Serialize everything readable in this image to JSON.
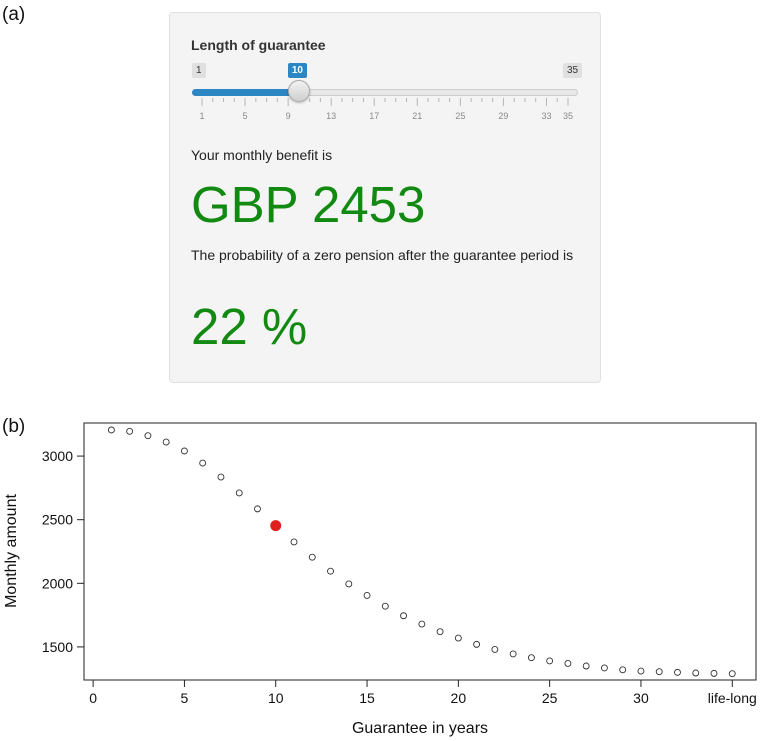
{
  "panel_a_label": "(a)",
  "panel_b_label": "(b)",
  "widget": {
    "title": "Length of guarantee",
    "slider": {
      "min": 1,
      "max": 35,
      "value": 10,
      "min_label": "1",
      "max_label": "35",
      "value_label": "10",
      "tick_labels": [
        "1",
        "5",
        "9",
        "13",
        "17",
        "21",
        "25",
        "29",
        "33",
        "35"
      ],
      "accent_color": "#2c86c4"
    },
    "benefit_label": "Your monthly benefit is",
    "benefit_value": "GBP 2453",
    "probability_label": "The probability of a zero pension after the guarantee period is",
    "probability_value": "22 %",
    "value_color": "#128a12"
  },
  "chart_data": {
    "type": "scatter",
    "xlabel": "Guarantee in years",
    "ylabel": "Monthly amount",
    "x_ticks": [
      "0",
      "5",
      "10",
      "15",
      "20",
      "25",
      "30",
      "life-long"
    ],
    "x_tick_values": [
      0,
      5,
      10,
      15,
      20,
      25,
      30,
      35
    ],
    "y_ticks": [
      "1500",
      "2000",
      "2500",
      "3000"
    ],
    "y_tick_values": [
      1500,
      2000,
      2500,
      3000
    ],
    "xlim": [
      -0.5,
      36.3
    ],
    "ylim": [
      1240,
      3260
    ],
    "x": [
      1,
      2,
      3,
      4,
      5,
      6,
      7,
      8,
      9,
      10,
      11,
      12,
      13,
      14,
      15,
      16,
      17,
      18,
      19,
      20,
      21,
      22,
      23,
      24,
      25,
      26,
      27,
      28,
      29,
      30,
      31,
      32,
      33,
      34,
      35
    ],
    "y": [
      3205,
      3195,
      3160,
      3110,
      3040,
      2945,
      2835,
      2710,
      2585,
      2453,
      2325,
      2205,
      2095,
      1995,
      1905,
      1820,
      1745,
      1680,
      1620,
      1570,
      1520,
      1480,
      1445,
      1415,
      1390,
      1370,
      1350,
      1335,
      1320,
      1310,
      1305,
      1300,
      1295,
      1292,
      1290
    ],
    "highlight_x": 10,
    "highlight_y": 2453,
    "highlight_color": "#e0201c",
    "marker": "open-circle"
  }
}
